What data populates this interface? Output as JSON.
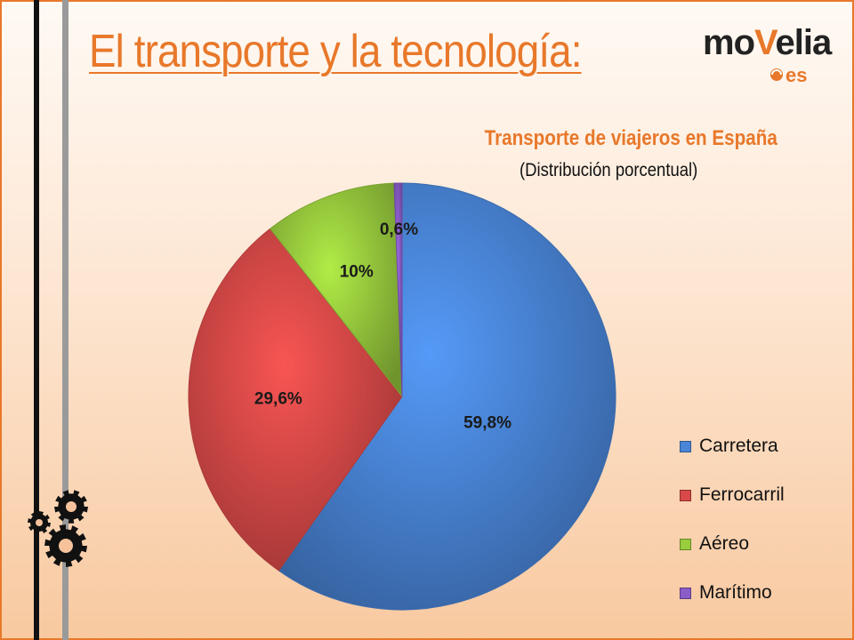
{
  "slide": {
    "title": "El transporte y la tecnología:",
    "accent_color": "#e8782a"
  },
  "logo": {
    "word_part1": "mo",
    "word_accent": "V",
    "word_part2": "elia",
    "suffix": "es"
  },
  "decorations": {
    "gears_icon": "gears-icon"
  },
  "chart_data": {
    "type": "pie",
    "title": "Transporte de viajeros en España",
    "subtitle": "(Distribución porcentual)",
    "legend_position": "right",
    "categories": [
      "Carretera",
      "Ferrocarril",
      "Aéreo",
      "Marítimo"
    ],
    "values": [
      59.8,
      29.6,
      10,
      0.6
    ],
    "labels": [
      "59,8%",
      "29,6%",
      "10%",
      "0,6%"
    ],
    "colors": [
      "#4a86d8",
      "#d84a48",
      "#9acd3e",
      "#8a5cc8"
    ]
  }
}
